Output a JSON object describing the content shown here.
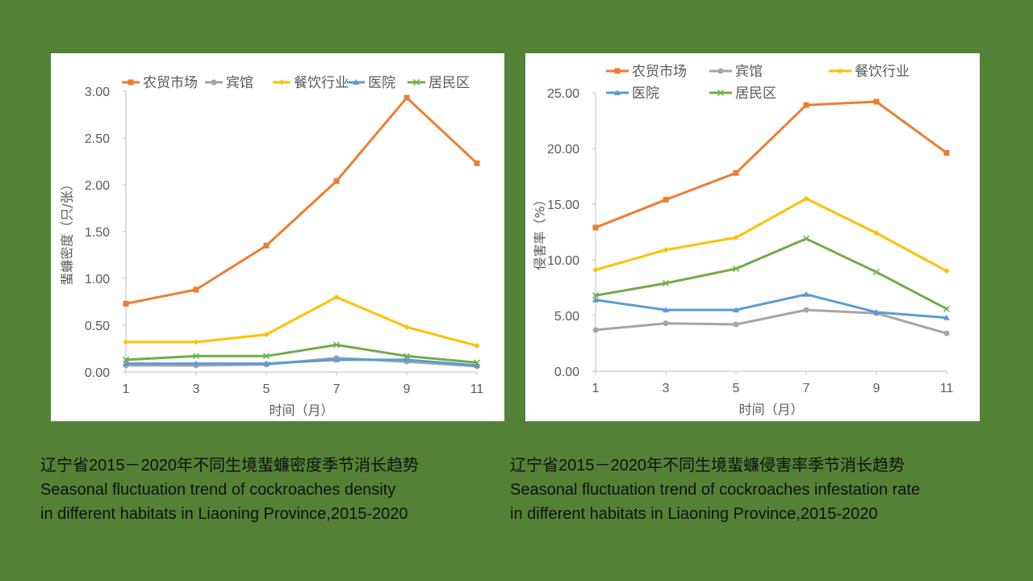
{
  "chart_data": [
    {
      "type": "line",
      "title": "",
      "xlabel": "时间（月）",
      "ylabel": "蜚蠊密度（只/张）",
      "x": [
        1,
        3,
        5,
        7,
        9,
        11
      ],
      "xticks": [
        "1",
        "3",
        "5",
        "7",
        "9",
        "11"
      ],
      "ylim": [
        0,
        3
      ],
      "yticks": [
        "0.00",
        "0.50",
        "1.00",
        "1.50",
        "2.00",
        "2.50",
        "3.00"
      ],
      "legend_position": "top",
      "series": [
        {
          "name": "农贸市场",
          "color": "#ED7D31",
          "marker": "square",
          "values": [
            0.73,
            0.88,
            1.35,
            2.04,
            2.93,
            2.23
          ]
        },
        {
          "name": "宾馆",
          "color": "#A5A5A5",
          "marker": "circle",
          "values": [
            0.07,
            0.07,
            0.08,
            0.15,
            0.11,
            0.06
          ]
        },
        {
          "name": "餐饮行业",
          "color": "#FFC000",
          "marker": "diamond",
          "values": [
            0.32,
            0.32,
            0.4,
            0.8,
            0.48,
            0.28
          ]
        },
        {
          "name": "医院",
          "color": "#5B9BD5",
          "marker": "triangle",
          "values": [
            0.09,
            0.09,
            0.09,
            0.13,
            0.13,
            0.07
          ]
        },
        {
          "name": "居民区",
          "color": "#70AD47",
          "marker": "x",
          "values": [
            0.13,
            0.17,
            0.17,
            0.29,
            0.17,
            0.1
          ]
        }
      ]
    },
    {
      "type": "line",
      "title": "",
      "xlabel": "时间（月）",
      "ylabel": "侵害率（%）",
      "x": [
        1,
        3,
        5,
        7,
        9,
        11
      ],
      "xticks": [
        "1",
        "3",
        "5",
        "7",
        "9",
        "11"
      ],
      "ylim": [
        0,
        25
      ],
      "yticks": [
        "0.00",
        "5.00",
        "10.00",
        "15.00",
        "20.00",
        "25.00"
      ],
      "legend_position": "top",
      "series": [
        {
          "name": "农贸市场",
          "color": "#ED7D31",
          "marker": "square",
          "values": [
            12.9,
            15.4,
            17.8,
            23.9,
            24.2,
            19.6
          ]
        },
        {
          "name": "宾馆",
          "color": "#A5A5A5",
          "marker": "circle",
          "values": [
            3.7,
            4.3,
            4.2,
            5.5,
            5.2,
            3.4
          ]
        },
        {
          "name": "餐饮行业",
          "color": "#FFC000",
          "marker": "diamond",
          "values": [
            9.1,
            10.9,
            12.0,
            15.5,
            12.4,
            9.0
          ]
        },
        {
          "name": "医院",
          "color": "#5B9BD5",
          "marker": "triangle",
          "values": [
            6.4,
            5.5,
            5.5,
            6.9,
            5.3,
            4.8
          ]
        },
        {
          "name": "居民区",
          "color": "#70AD47",
          "marker": "x",
          "values": [
            6.8,
            7.9,
            9.2,
            11.9,
            8.9,
            5.6
          ]
        }
      ]
    }
  ],
  "captions": {
    "left": {
      "zh": "辽宁省2015－2020年不同生境蜚蠊密度季节消长趋势",
      "en1": "Seasonal fluctuation trend of cockroaches density",
      "en2": "in different habitats in Liaoning Province,2015-2020"
    },
    "right": {
      "zh": "辽宁省2015－2020年不同生境蜚蠊侵害率季节消长趋势",
      "en1": "Seasonal fluctuation trend of cockroaches infestation rate",
      "en2": "in different habitats in Liaoning Province,2015-2020"
    }
  }
}
